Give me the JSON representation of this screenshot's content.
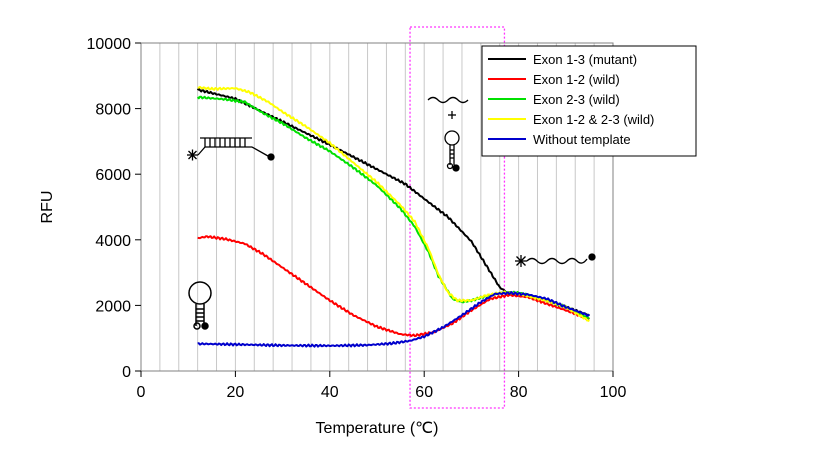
{
  "chart_data": {
    "type": "line",
    "xlabel": "Temperature (℃)",
    "ylabel": "RFU",
    "xlim": [
      0,
      100
    ],
    "ylim": [
      0,
      10000
    ],
    "xticks": [
      "0",
      "20",
      "40",
      "60",
      "80",
      "100"
    ],
    "yticks": [
      "0",
      "2000",
      "4000",
      "6000",
      "8000",
      "10000"
    ],
    "grid": "vertical",
    "legend_position": "top-right",
    "highlight_range": [
      57,
      77
    ],
    "series": [
      {
        "name": "Exon 1-3 (mutant)",
        "color": "#000000",
        "points": [
          [
            12,
            8580
          ],
          [
            20,
            8300
          ],
          [
            30,
            7600
          ],
          [
            40,
            6900
          ],
          [
            50,
            6150
          ],
          [
            56,
            5700
          ],
          [
            60,
            5250
          ],
          [
            65,
            4700
          ],
          [
            70,
            3950
          ],
          [
            73,
            3250
          ],
          [
            76,
            2550
          ],
          [
            78,
            2350
          ],
          [
            82,
            2300
          ],
          [
            86,
            2150
          ],
          [
            90,
            1950
          ],
          [
            95,
            1700
          ]
        ]
      },
      {
        "name": "Exon 1-2 (wild)",
        "color": "#ff0000",
        "points": [
          [
            12,
            4050
          ],
          [
            14,
            4100
          ],
          [
            18,
            4020
          ],
          [
            22,
            3880
          ],
          [
            26,
            3550
          ],
          [
            30,
            3150
          ],
          [
            35,
            2650
          ],
          [
            40,
            2150
          ],
          [
            45,
            1700
          ],
          [
            50,
            1350
          ],
          [
            55,
            1120
          ],
          [
            58,
            1080
          ],
          [
            62,
            1180
          ],
          [
            66,
            1450
          ],
          [
            70,
            1850
          ],
          [
            74,
            2200
          ],
          [
            78,
            2320
          ],
          [
            82,
            2250
          ],
          [
            86,
            2050
          ],
          [
            90,
            1850
          ],
          [
            95,
            1580
          ]
        ]
      },
      {
        "name": "Exon 2-3 (wild)",
        "color": "#00e000",
        "points": [
          [
            12,
            8350
          ],
          [
            18,
            8280
          ],
          [
            22,
            8200
          ],
          [
            26,
            7850
          ],
          [
            30,
            7550
          ],
          [
            35,
            7100
          ],
          [
            40,
            6700
          ],
          [
            45,
            6200
          ],
          [
            50,
            5650
          ],
          [
            55,
            4950
          ],
          [
            58,
            4400
          ],
          [
            61,
            3600
          ],
          [
            63,
            2900
          ],
          [
            66,
            2200
          ],
          [
            68,
            2100
          ],
          [
            70,
            2150
          ],
          [
            73,
            2280
          ],
          [
            77,
            2400
          ],
          [
            80,
            2380
          ],
          [
            85,
            2200
          ],
          [
            90,
            1950
          ],
          [
            95,
            1600
          ]
        ]
      },
      {
        "name": "Exon 1-2 & 2-3 (wild)",
        "color": "#ffff00",
        "points": [
          [
            12,
            8650
          ],
          [
            15,
            8600
          ],
          [
            20,
            8620
          ],
          [
            23,
            8500
          ],
          [
            27,
            8200
          ],
          [
            30,
            7900
          ],
          [
            35,
            7450
          ],
          [
            40,
            6950
          ],
          [
            45,
            6350
          ],
          [
            50,
            5750
          ],
          [
            55,
            5050
          ],
          [
            58,
            4550
          ],
          [
            61,
            3700
          ],
          [
            63,
            2950
          ],
          [
            65,
            2400
          ],
          [
            67,
            2150
          ],
          [
            70,
            2150
          ],
          [
            73,
            2300
          ],
          [
            77,
            2400
          ],
          [
            80,
            2350
          ],
          [
            85,
            2180
          ],
          [
            90,
            1950
          ],
          [
            95,
            1520
          ]
        ]
      },
      {
        "name": "Without template",
        "color": "#0000cc",
        "points": [
          [
            12,
            830
          ],
          [
            20,
            810
          ],
          [
            30,
            780
          ],
          [
            40,
            770
          ],
          [
            48,
            790
          ],
          [
            53,
            840
          ],
          [
            57,
            920
          ],
          [
            60,
            1050
          ],
          [
            64,
            1330
          ],
          [
            68,
            1700
          ],
          [
            72,
            2100
          ],
          [
            75,
            2350
          ],
          [
            78,
            2380
          ],
          [
            82,
            2330
          ],
          [
            86,
            2200
          ],
          [
            90,
            1950
          ],
          [
            95,
            1680
          ]
        ]
      }
    ]
  }
}
